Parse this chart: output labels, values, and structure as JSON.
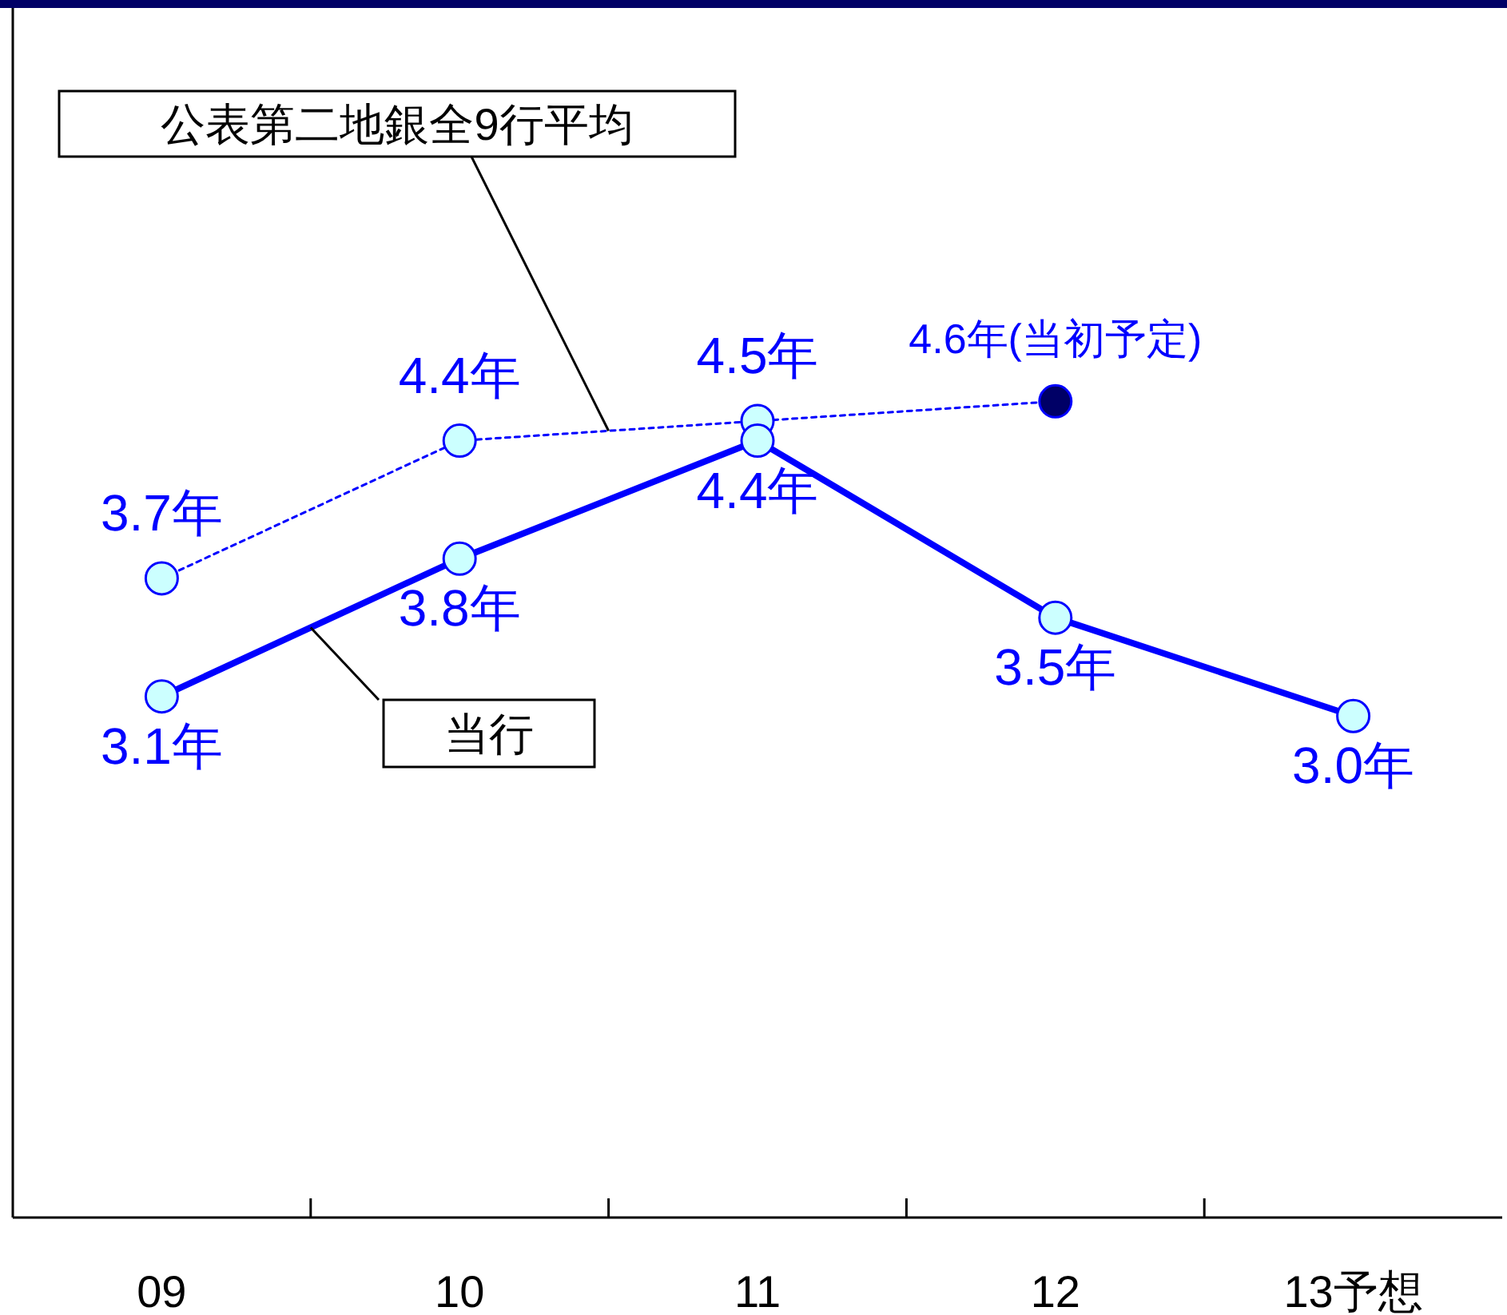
{
  "chart_data": {
    "type": "line",
    "categories": [
      "09",
      "10",
      "11",
      "12",
      "13予想"
    ],
    "ylim": [
      0.45,
      6.6
    ],
    "marker": "circle",
    "tick_labels": "x",
    "series": [
      {
        "name": "当行",
        "color": "#0000ff",
        "line_style": "solid",
        "values": [
          3.1,
          3.8,
          4.4,
          3.5,
          3.0
        ],
        "colors": [
          "#ccffff",
          "#ccffff",
          "#ccffff",
          "#ccffff",
          "#ccffff"
        ],
        "value_labels": [
          "3.1年",
          "3.8年",
          "4.4年",
          "3.5年",
          "3.0年"
        ]
      },
      {
        "name": "公表第二地銀全9行平均",
        "color": "#0000ff",
        "line_style": "dotted",
        "values": [
          3.7,
          4.4,
          4.5,
          4.6,
          null
        ],
        "colors": [
          "#ccffff",
          "#ccffff",
          "#ccffff",
          "#000066",
          null
        ],
        "value_labels": [
          "3.7年",
          "4.4年",
          "4.5年",
          "4.6年(当初予定)",
          null
        ]
      }
    ]
  }
}
